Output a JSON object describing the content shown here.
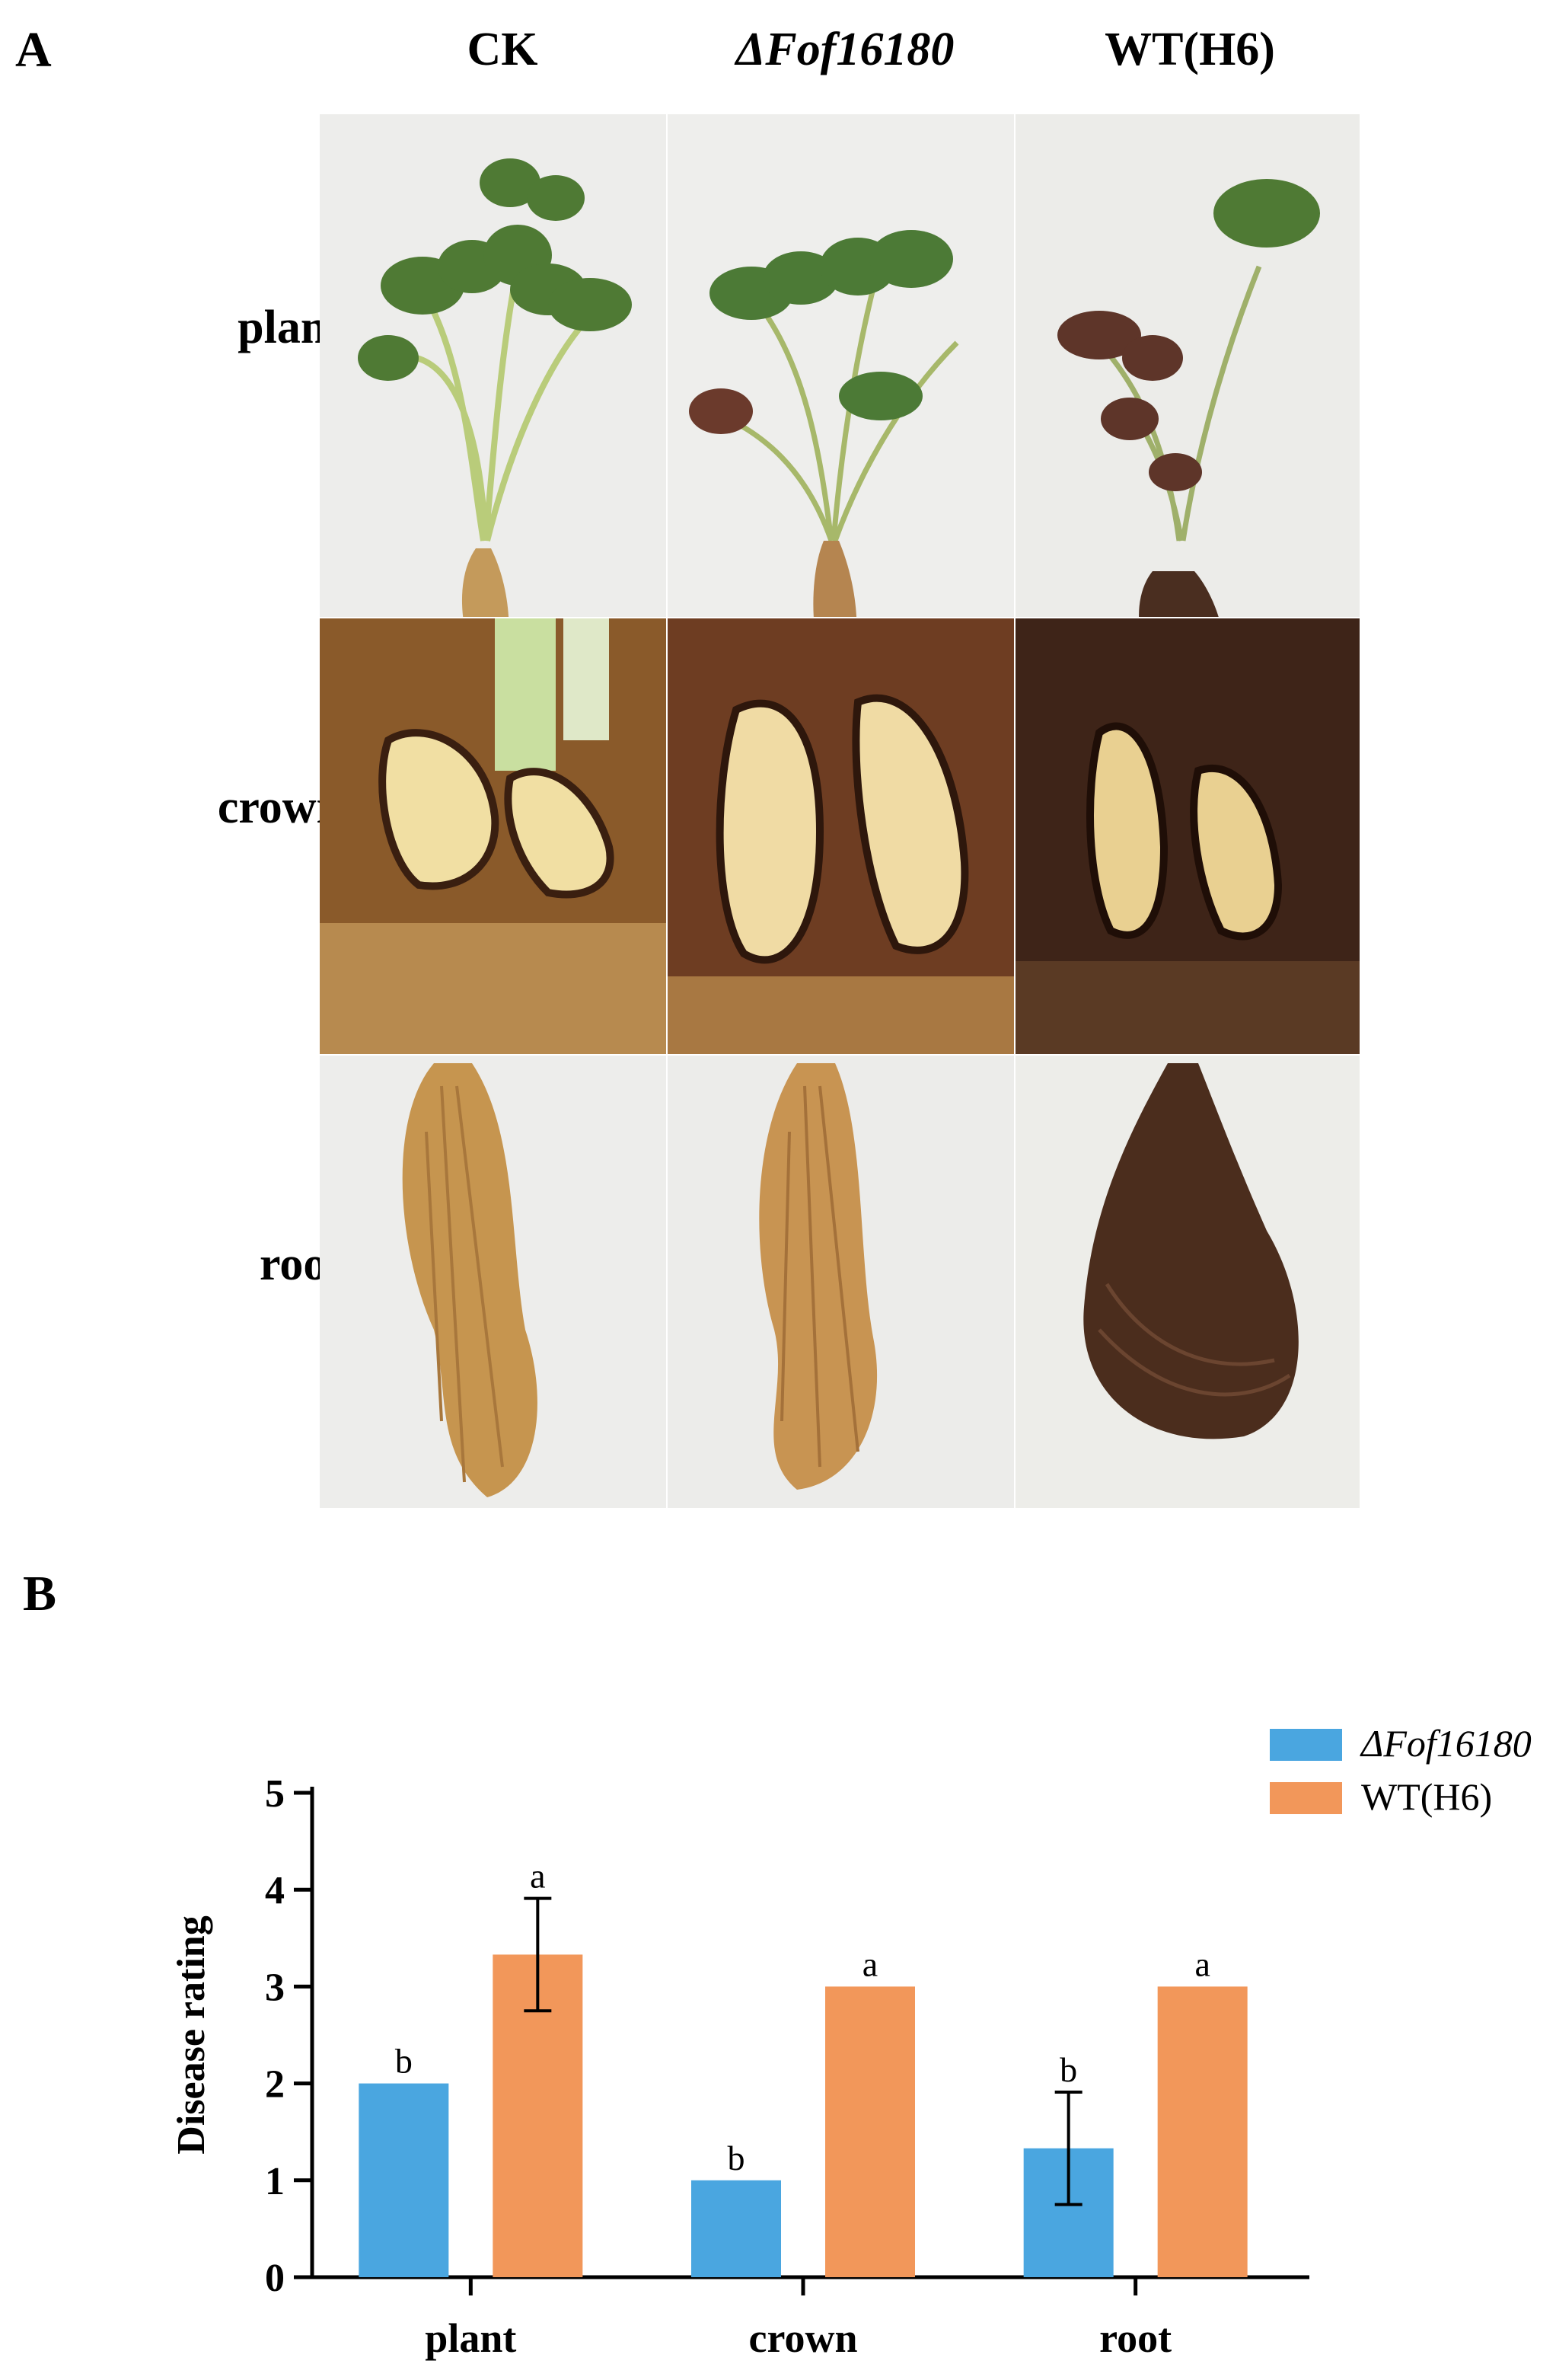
{
  "panels": {
    "a": "A",
    "b": "B"
  },
  "figure_a": {
    "columns": [
      {
        "label": "CK",
        "italic": false
      },
      {
        "label": "ΔFof16180",
        "italic": true
      },
      {
        "label": "WT(H6)",
        "italic": false
      }
    ],
    "rows": [
      "plant",
      "crown",
      "root"
    ]
  },
  "chart_data": {
    "type": "bar",
    "categories": [
      "plant",
      "crown",
      "root"
    ],
    "ylabel": "Disease rating",
    "xlabel": "",
    "ylim": [
      0,
      5
    ],
    "yticks": [
      0,
      1,
      2,
      3,
      4,
      5
    ],
    "grid": false,
    "legend": "top-right",
    "series": [
      {
        "name": "ΔFof16180",
        "color": "#4aa6e0",
        "values": [
          2.0,
          1.0,
          1.33
        ],
        "errors": [
          0,
          0,
          0.58
        ],
        "letters": [
          "b",
          "b",
          "b"
        ]
      },
      {
        "name": "WT(H6)",
        "color": "#f2975a",
        "values": [
          3.33,
          3.0,
          3.0
        ],
        "errors": [
          0.58,
          0,
          0
        ],
        "letters": [
          "a",
          "a",
          "a"
        ]
      }
    ]
  }
}
